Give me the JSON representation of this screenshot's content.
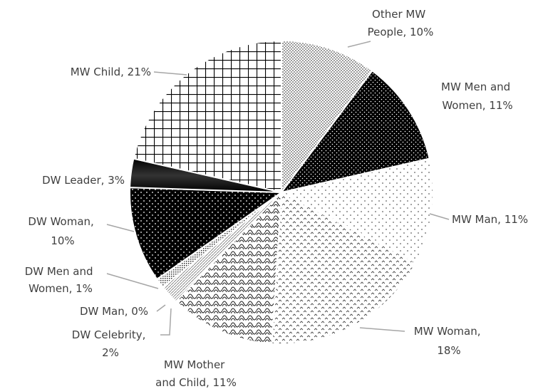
{
  "chart_data": {
    "type": "pie",
    "categories": [
      "Other MW People, 10%",
      "MW Men and Women, 11%",
      "MW Man, 11%",
      "MW Woman, 18%",
      "MW Mother and Child, 11%",
      "DW Celebrity, 2%",
      "DW Man, 0%",
      "DW Men and Women, 1%",
      "DW Woman, 10%",
      "DW Leader, 3%",
      "MW Child, 21%"
    ],
    "values": [
      10,
      11,
      11,
      18,
      11,
      2,
      0,
      1,
      10,
      3,
      21
    ]
  }
}
